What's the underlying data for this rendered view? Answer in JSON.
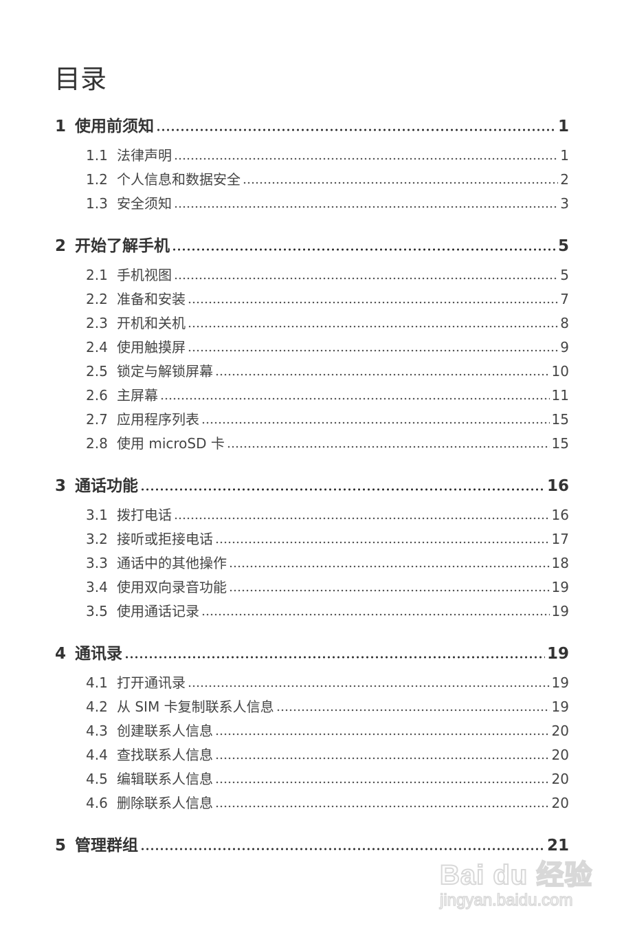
{
  "title": "目录",
  "chapters": [
    {
      "num": "1",
      "label": "使用前须知",
      "page": "1",
      "sections": [
        {
          "num": "1.1",
          "label": "法律声明",
          "page": "1"
        },
        {
          "num": "1.2",
          "label": "个人信息和数据安全",
          "page": "2"
        },
        {
          "num": "1.3",
          "label": "安全须知",
          "page": "3"
        }
      ]
    },
    {
      "num": "2",
      "label": "开始了解手机",
      "page": "5",
      "sections": [
        {
          "num": "2.1",
          "label": "手机视图",
          "page": "5"
        },
        {
          "num": "2.2",
          "label": "准备和安装",
          "page": "7"
        },
        {
          "num": "2.3",
          "label": "开机和关机",
          "page": "8"
        },
        {
          "num": "2.4",
          "label": "使用触摸屏",
          "page": "9"
        },
        {
          "num": "2.5",
          "label": "锁定与解锁屏幕",
          "page": "10"
        },
        {
          "num": "2.6",
          "label": "主屏幕",
          "page": "11"
        },
        {
          "num": "2.7",
          "label": "应用程序列表",
          "page": "15"
        },
        {
          "num": "2.8",
          "label": "使用 microSD 卡",
          "page": "15"
        }
      ]
    },
    {
      "num": "3",
      "label": "通话功能",
      "page": "16",
      "sections": [
        {
          "num": "3.1",
          "label": "拨打电话",
          "page": "16"
        },
        {
          "num": "3.2",
          "label": "接听或拒接电话",
          "page": "17"
        },
        {
          "num": "3.3",
          "label": "通话中的其他操作",
          "page": "18"
        },
        {
          "num": "3.4",
          "label": "使用双向录音功能",
          "page": "19"
        },
        {
          "num": "3.5",
          "label": "使用通话记录",
          "page": "19"
        }
      ]
    },
    {
      "num": "4",
      "label": "通讯录",
      "page": "19",
      "sections": [
        {
          "num": "4.1",
          "label": "打开通讯录",
          "page": "19"
        },
        {
          "num": "4.2",
          "label": "从 SIM 卡复制联系人信息",
          "page": "19"
        },
        {
          "num": "4.3",
          "label": "创建联系人信息",
          "page": "20"
        },
        {
          "num": "4.4",
          "label": "查找联系人信息",
          "page": "20"
        },
        {
          "num": "4.5",
          "label": "编辑联系人信息",
          "page": "20"
        },
        {
          "num": "4.6",
          "label": "删除联系人信息",
          "page": "20"
        }
      ]
    },
    {
      "num": "5",
      "label": "管理群组",
      "page": "21",
      "sections": []
    }
  ],
  "watermark": {
    "logo": "Bai du 经验",
    "url": "jingyan.baidu.com"
  }
}
